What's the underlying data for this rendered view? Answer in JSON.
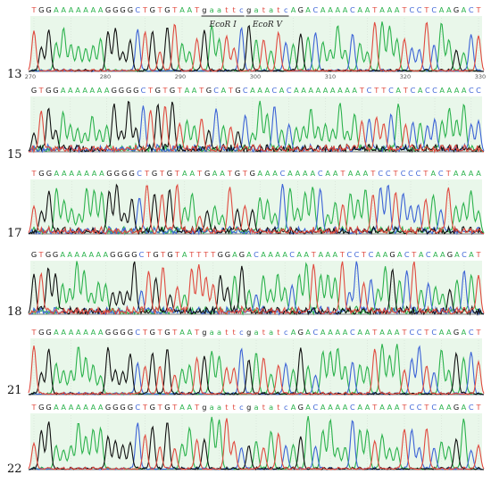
{
  "colors": {
    "A": "#2bb24c",
    "C": "#3c63d6",
    "G": "#111111",
    "T": "#e04a3f",
    "highlight": "#e9f7ea",
    "axis": "#555555",
    "annotation": "#222222"
  },
  "figure": {
    "panels": [
      {
        "label": "13",
        "sequence": "TGGAAAAAAAGGGGCTGTGTAATgaattcgatatcAGACAAAACAATAAATCCTCAAGACT",
        "annotations": [
          {
            "text": "EcoR I"
          },
          {
            "text": "EcoR V"
          }
        ],
        "ruler": [
          "270",
          "280",
          "290",
          "300",
          "310",
          "320",
          "330"
        ]
      },
      {
        "label": "15",
        "sequence": "GTGGAAAAAAAGGGGCTGTGTAATGCATGCAAACACAAAAAAAAATCTTCATCACCAAAACC",
        "annotations": [],
        "ruler": []
      },
      {
        "label": "17",
        "sequence": "TGGAAAAAAAGGGGCTGTGTAATGAATGTGAAACAAAACAATAAATCCTCCCTACTAAAA",
        "annotations": [],
        "ruler": []
      },
      {
        "label": "18",
        "sequence": "GTGGAAAAAAAGGGGCTGTGTATTTTGGAGACAAAACAATAAATCCTCAAGACTACAAGACAT",
        "annotations": [],
        "ruler": []
      },
      {
        "label": "21",
        "sequence": "TGGAAAAAAAGGGGCTGTGTAATgaattcgatatcAGACAAAACAATAAATCCTCAAGACT",
        "annotations": [],
        "ruler": []
      },
      {
        "label": "22",
        "sequence": "TGGAAAAAAAGGGGCTGTGTAATgaattcgatatcAGACAAAACAATAAATCCTCAAGACT",
        "annotations": [],
        "ruler": []
      }
    ]
  }
}
